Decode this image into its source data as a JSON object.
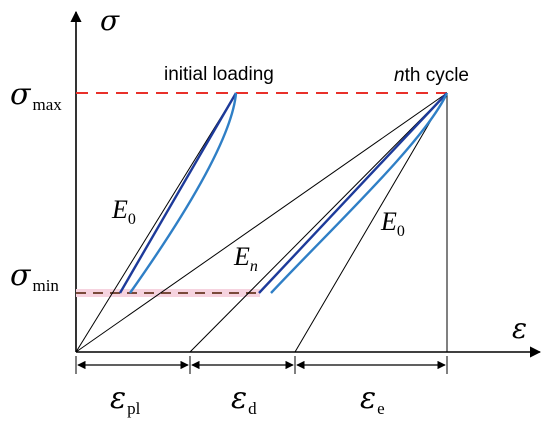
{
  "axes": {
    "y_symbol": "σ",
    "x_symbol": "ε"
  },
  "y_labels": {
    "max_symbol": "σ",
    "max_sub": "max",
    "min_symbol": "σ",
    "min_sub": "min"
  },
  "annotations": {
    "initial_loading": "initial loading",
    "nth_cycle_n": "n",
    "nth_cycle_rest": "th cycle",
    "E0_left_letter": "E",
    "E0_left_sub": "0",
    "En_letter": "E",
    "En_sub": "n",
    "E0_right_letter": "E",
    "E0_right_sub": "0"
  },
  "strain_parts": [
    {
      "symbol": "ε",
      "sub": "pl"
    },
    {
      "symbol": "ε",
      "sub": "d"
    },
    {
      "symbol": "ε",
      "sub": "e"
    }
  ],
  "colors": {
    "axis": "#000000",
    "max_dash": "#e8302a",
    "min_dash": "#7a4a3a",
    "min_highlight": "#f6d3df",
    "loop_dark": "#1d3a9a",
    "loop_light": "#2f7fc6"
  }
}
